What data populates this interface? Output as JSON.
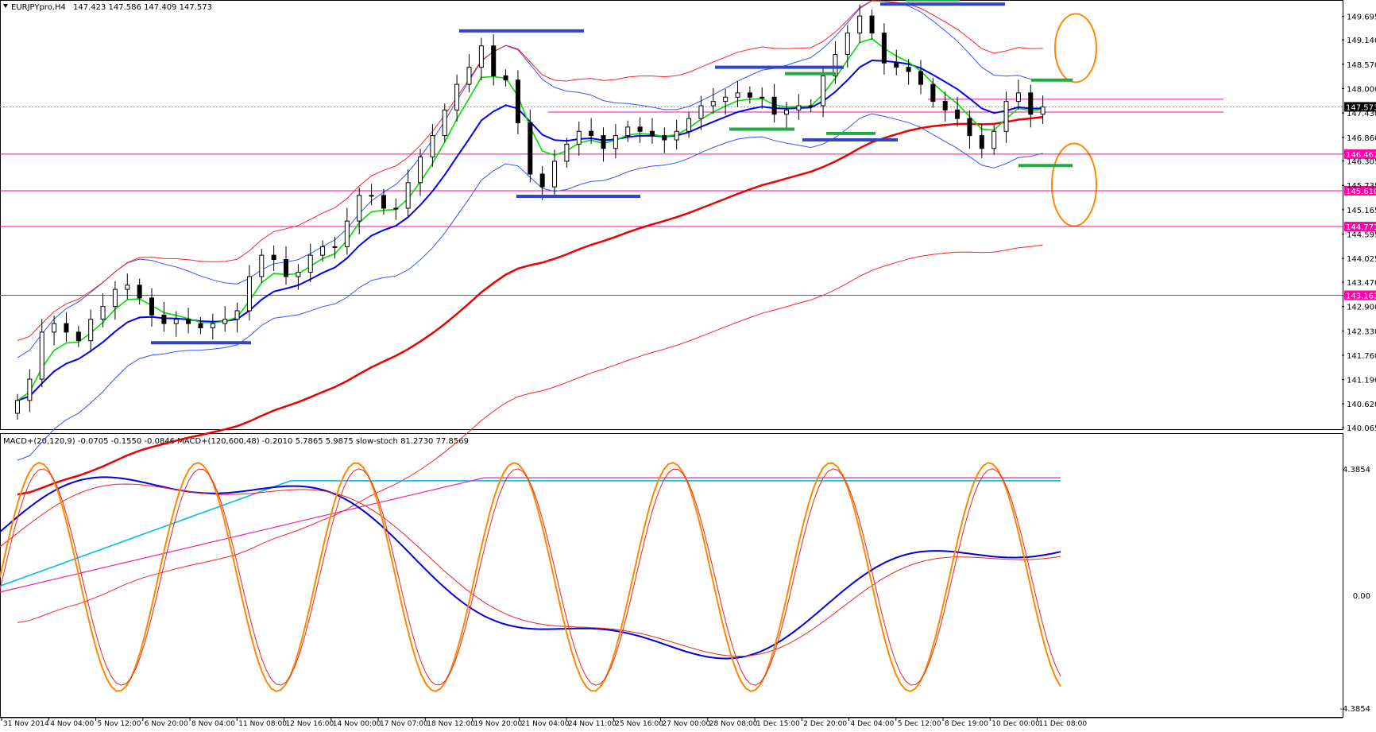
{
  "window": {
    "symbol_title": "EURJPYpro,H4",
    "ohlc": "147.423 147.586 147.409 147.573"
  },
  "sub_window": {
    "indicator_title": "MACD+(20,120,9) -0.0705 -0.1550 -0.0846  MACD+(120,600,48) -0.2010 5.7865 5.9875  slow-stoch 81.2730 77.8569",
    "y_ticks": [
      "4.3854",
      "0.00",
      "-4.3854"
    ]
  },
  "chart_data": [
    {
      "type": "line",
      "panel": "price",
      "title": "EURJPYpro,H4",
      "ylim": [
        140.065,
        150.0
      ],
      "y_ticks": [
        "149.695",
        "149.140",
        "148.570",
        "148.000",
        "147.430",
        "146.860",
        "146.305",
        "145.735",
        "145.165",
        "144.595",
        "144.025",
        "143.470",
        "142.900",
        "142.330",
        "141.760",
        "141.190",
        "140.620",
        "140.065"
      ],
      "current_price": "147.573",
      "x_ticks": [
        "31 Nov 2014",
        "4 Nov 04:00",
        "5 Nov 12:00",
        "6 Nov 20:00",
        "8 Nov 04:00",
        "11 Nov 08:00",
        "12 Nov 16:00",
        "14 Nov 00:00",
        "17 Nov 07:00",
        "18 Nov 12:00",
        "19 Nov 20:00",
        "21 Nov 04:00",
        "24 Nov 11:00",
        "25 Nov 16:00",
        "27 Nov 00:00",
        "28 Nov 08:00",
        "1 Dec 15:00",
        "2 Dec 20:00",
        "4 Dec 04:00",
        "5 Dec 12:00",
        "8 Dec 19:00",
        "10 Dec 00:00",
        "11 Dec 08:00"
      ],
      "horizontal_levels": [
        {
          "label": "146.467",
          "value": 146.467
        },
        {
          "label": "145.610",
          "value": 145.61
        },
        {
          "label": "144.771",
          "value": 144.771
        },
        {
          "label": "143.163",
          "value": 143.163
        }
      ],
      "close_series": [
        140.7,
        141.2,
        142.3,
        142.5,
        142.3,
        142.1,
        142.6,
        142.9,
        143.3,
        143.4,
        143.1,
        142.7,
        142.5,
        142.6,
        142.5,
        142.4,
        142.5,
        142.6,
        142.8,
        143.6,
        144.1,
        144.0,
        143.6,
        143.7,
        144.1,
        144.3,
        144.3,
        144.9,
        145.5,
        145.5,
        145.2,
        145.2,
        145.8,
        146.4,
        146.9,
        147.5,
        148.1,
        148.5,
        149.0,
        148.3,
        148.2,
        147.2,
        146.0,
        145.7,
        146.3,
        146.7,
        147.0,
        146.9,
        146.6,
        146.9,
        147.1,
        147.0,
        146.9,
        146.8,
        147.0,
        147.3,
        147.6,
        147.7,
        147.8,
        147.9,
        147.8,
        147.8,
        147.4,
        147.5,
        147.6,
        147.6,
        148.3,
        148.8,
        149.3,
        149.7,
        149.3,
        148.6,
        148.5,
        148.4,
        148.1,
        147.7,
        147.5,
        147.3,
        146.9,
        146.6,
        147.0,
        147.7,
        147.9,
        147.4,
        147.57
      ],
      "series": [
        {
          "name": "",
          "color": "#00dd00"
        },
        {
          "name": "",
          "color": "#0000ff"
        },
        {
          "name": "",
          "color": "#ee0000"
        },
        {
          "name": "",
          "color": "#3355ff"
        },
        {
          "name": "",
          "color": "#ff2222"
        }
      ],
      "annotations": [
        "blue-horizontal-segments",
        "green-horizontal-segments",
        "orange-ellipses"
      ]
    },
    {
      "type": "line",
      "panel": "oscillator",
      "ylim": [
        -4.3854,
        4.3854
      ],
      "series": [
        {
          "name": "",
          "color": "#0000dd"
        },
        {
          "name": "",
          "color": "#ee2222"
        },
        {
          "name": "",
          "color": "#00bbee"
        },
        {
          "name": "",
          "color": "#ee22aa"
        },
        {
          "name": "",
          "color": "#ff8800"
        }
      ]
    }
  ],
  "colors": {
    "background": "#ffffff",
    "grid_border": "#000000",
    "level_line": "#ff00aa",
    "level_box": "#ff00aa",
    "current_price_box": "#000000",
    "ellipse": "#ff8800"
  }
}
